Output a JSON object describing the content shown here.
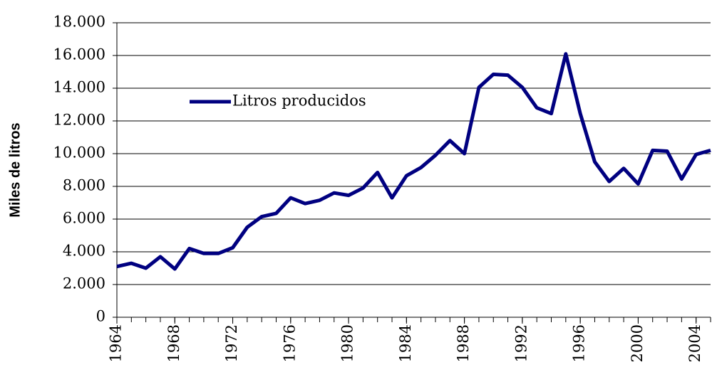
{
  "chart_data": {
    "type": "line",
    "ylabel": "Miles de litros",
    "x": [
      1964,
      1965,
      1966,
      1967,
      1968,
      1969,
      1970,
      1971,
      1972,
      1973,
      1974,
      1975,
      1976,
      1977,
      1978,
      1979,
      1980,
      1981,
      1982,
      1983,
      1984,
      1985,
      1986,
      1987,
      1988,
      1989,
      1990,
      1991,
      1992,
      1993,
      1994,
      1995,
      1996,
      1997,
      1998,
      1999,
      2000,
      2001,
      2002,
      2003,
      2004,
      2005
    ],
    "series": [
      {
        "name": "Litros producidos",
        "color": "#000080",
        "values": [
          3100,
          3300,
          3000,
          3700,
          2950,
          4200,
          3900,
          3900,
          4250,
          5500,
          6150,
          6350,
          7300,
          6950,
          7150,
          7600,
          7450,
          7900,
          8850,
          7300,
          8650,
          9150,
          9900,
          10800,
          10000,
          14050,
          14850,
          14800,
          14050,
          12800,
          12450,
          16100,
          12450,
          9500,
          8300,
          9100,
          8150,
          10200,
          10150,
          8450,
          9950,
          10200
        ]
      }
    ],
    "xlim": [
      1964,
      2005
    ],
    "xticks": [
      1964,
      1968,
      1972,
      1976,
      1980,
      1984,
      1988,
      1992,
      1996,
      2000,
      2004
    ],
    "ylim": [
      0,
      18000
    ],
    "yticks": [
      0,
      {
        "value": 2000,
        "label": "2.000"
      },
      {
        "value": 4000,
        "label": "4.000"
      },
      {
        "value": 6000,
        "label": "6.000"
      },
      {
        "value": 8000,
        "label": "8.000"
      },
      {
        "value": 10000,
        "label": "10.000"
      },
      {
        "value": 12000,
        "label": "12.000"
      },
      {
        "value": 14000,
        "label": "14.000"
      },
      {
        "value": 16000,
        "label": "16.000"
      },
      {
        "value": 18000,
        "label": "18.000"
      }
    ],
    "grid": true,
    "legend": "upper-left"
  }
}
